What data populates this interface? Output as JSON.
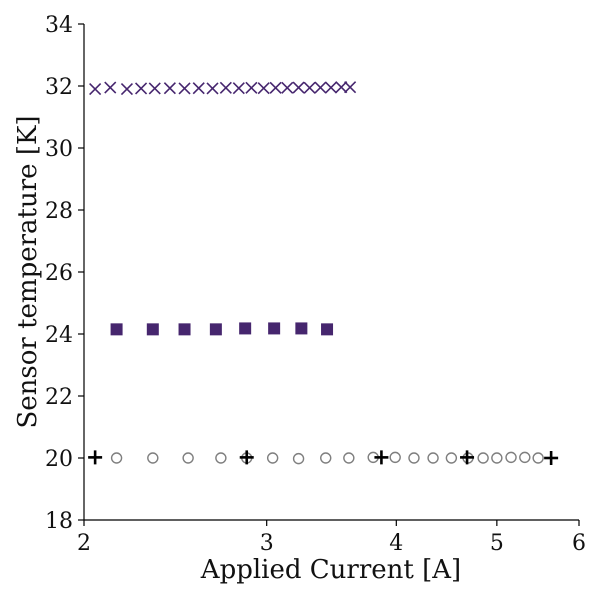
{
  "chart_data": {
    "type": "scatter",
    "title": "",
    "xlabel": "Applied Current [A]",
    "ylabel": "Sensor temperature [K]",
    "xscale": "log",
    "xlim": [
      2,
      6
    ],
    "ylim": [
      18,
      34
    ],
    "xticks": [
      2,
      3,
      4,
      5,
      6
    ],
    "yticks": [
      18,
      20,
      22,
      24,
      26,
      28,
      30,
      32,
      34
    ],
    "grid": false,
    "legend": "none",
    "series": [
      {
        "marker": "x",
        "color": "#46266e",
        "x": [
          2.05,
          2.12,
          2.2,
          2.27,
          2.34,
          2.42,
          2.5,
          2.58,
          2.66,
          2.74,
          2.82,
          2.9,
          2.98,
          3.06,
          3.14,
          3.22,
          3.3,
          3.38,
          3.46,
          3.54,
          3.61
        ],
        "y": [
          31.9,
          31.95,
          31.9,
          31.92,
          31.92,
          31.93,
          31.92,
          31.93,
          31.92,
          31.94,
          31.93,
          31.94,
          31.93,
          31.94,
          31.94,
          31.95,
          31.94,
          31.95,
          31.95,
          31.96,
          31.96
        ]
      },
      {
        "marker": "square",
        "color": "#46266e",
        "x": [
          2.15,
          2.33,
          2.5,
          2.68,
          2.86,
          3.05,
          3.24,
          3.43
        ],
        "y": [
          24.15,
          24.15,
          24.15,
          24.15,
          24.18,
          24.18,
          24.18,
          24.15
        ]
      },
      {
        "marker": "circle-open",
        "color": "#7f7f7f",
        "x": [
          2.15,
          2.33,
          2.52,
          2.71,
          2.87,
          3.04,
          3.22,
          3.42,
          3.6,
          3.8,
          3.99,
          4.16,
          4.34,
          4.52,
          4.69,
          4.85,
          5.0,
          5.16,
          5.32,
          5.48
        ],
        "y": [
          20.0,
          20.0,
          20.0,
          20.0,
          20.0,
          20.0,
          19.98,
          20.0,
          20.0,
          20.02,
          20.02,
          20.0,
          20.0,
          20.0,
          20.0,
          20.0,
          20.0,
          20.02,
          20.02,
          20.0
        ]
      },
      {
        "marker": "plus",
        "color": "#000000",
        "x": [
          2.05,
          2.87,
          3.87,
          4.68,
          5.64
        ],
        "y": [
          20.02,
          20.02,
          20.02,
          20.02,
          20.0
        ]
      }
    ]
  }
}
